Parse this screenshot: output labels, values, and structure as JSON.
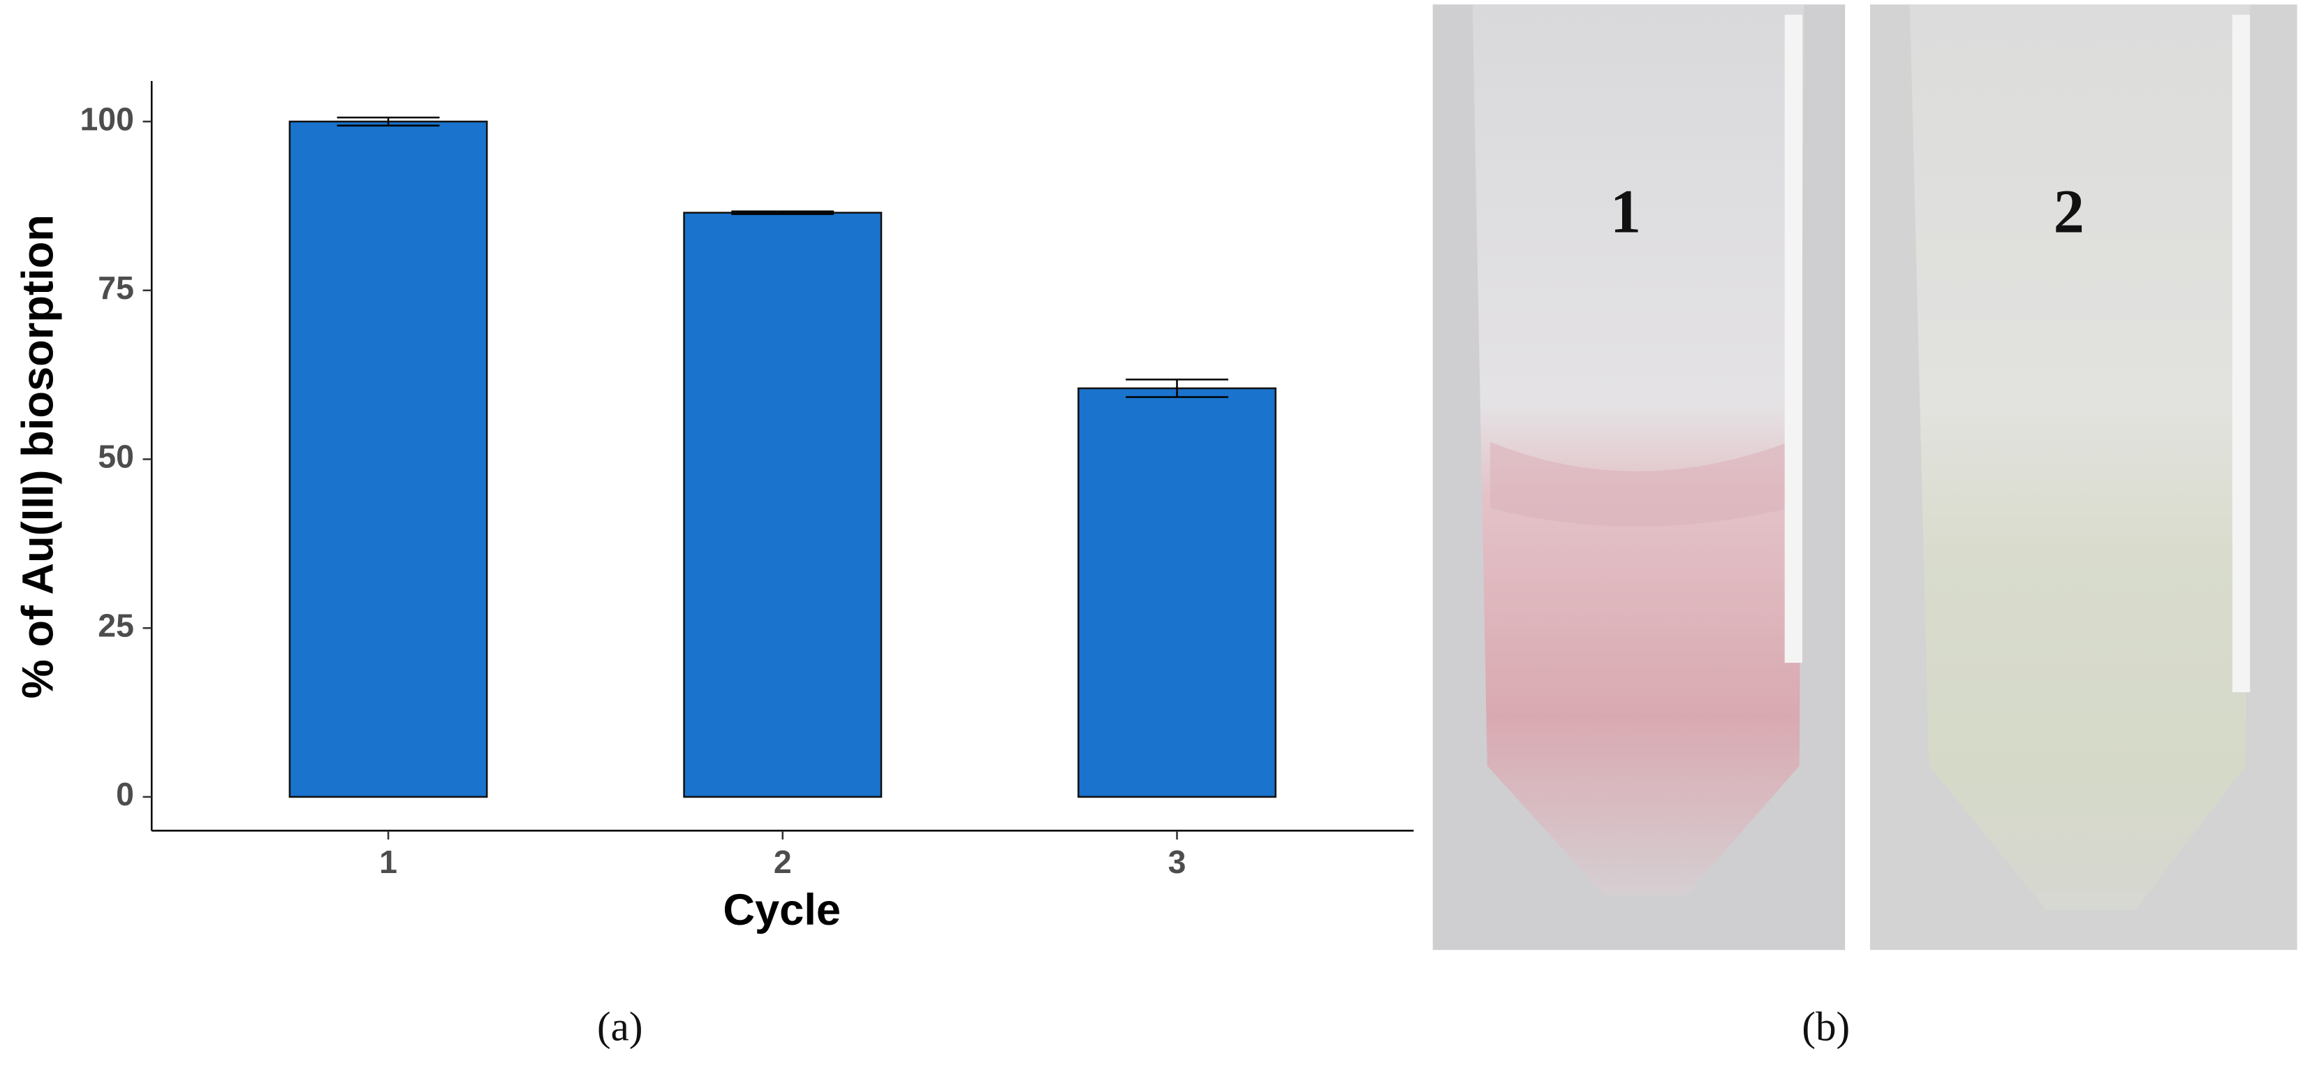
{
  "chart_data": {
    "type": "bar",
    "y_label": "% of Au(III) biosorption",
    "x_label": "Cycle",
    "categories": [
      "1",
      "2",
      "3"
    ],
    "values": [
      100,
      86.5,
      60.5
    ],
    "errors": [
      0.6,
      0.2,
      1.3
    ],
    "color": "#1a73cc",
    "ylim": [
      -5,
      106
    ],
    "yticks": [
      0,
      25,
      50,
      75,
      100
    ],
    "grid": false
  },
  "photo_labels": [
    "1",
    "2"
  ],
  "captions": [
    "(a)",
    "(b)"
  ]
}
